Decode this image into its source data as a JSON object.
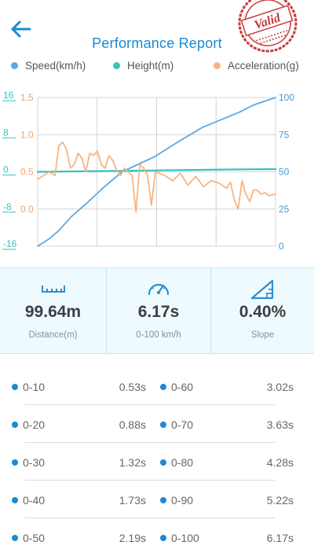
{
  "header": {
    "title": "Performance Report",
    "stamp_text": "Valid",
    "back_icon": "arrow-left-icon"
  },
  "legend": [
    {
      "label": "Speed(km/h)",
      "color": "#5aa9e6"
    },
    {
      "label": "Height(m)",
      "color": "#38c2bf"
    },
    {
      "label": "Acceleration(g)",
      "color": "#f8b480"
    }
  ],
  "chart_data": {
    "type": "line",
    "title": "",
    "xlabel": "",
    "grid": true,
    "axes": {
      "height_ticks": [
        "16",
        "8",
        "0",
        "-8",
        "-16"
      ],
      "height_range": [
        -16,
        16
      ],
      "accel_ticks": [
        "1.5",
        "1.0",
        "0.5",
        "0.0"
      ],
      "accel_range": [
        -0.5,
        1.5
      ],
      "speed_ticks": [
        "100",
        "75",
        "50",
        "25",
        "0"
      ],
      "speed_range": [
        0,
        100
      ],
      "x_range": [
        0,
        6.17
      ]
    },
    "series": [
      {
        "name": "Speed(km/h)",
        "axis": "speed",
        "color": "#5aa9e6",
        "x": [
          0,
          0.3,
          0.53,
          0.88,
          1.32,
          1.73,
          2.19,
          2.6,
          3.02,
          3.63,
          4.28,
          5.22,
          5.6,
          6.17
        ],
        "y": [
          0,
          5,
          10,
          20,
          30,
          40,
          50,
          55,
          60,
          70,
          80,
          90,
          95,
          100
        ]
      },
      {
        "name": "Height(m)",
        "axis": "height",
        "color": "#38c2bf",
        "x": [
          0,
          1.0,
          2.0,
          3.0,
          4.0,
          5.0,
          6.17
        ],
        "y": [
          0,
          0.1,
          0.2,
          0.3,
          0.4,
          0.5,
          0.6
        ]
      },
      {
        "name": "Acceleration(g)",
        "axis": "accel",
        "color": "#f8b480",
        "x": [
          0,
          0.3,
          0.45,
          0.55,
          0.65,
          0.75,
          0.85,
          0.95,
          1.05,
          1.15,
          1.25,
          1.35,
          1.45,
          1.55,
          1.65,
          1.75,
          1.85,
          1.95,
          2.05,
          2.15,
          2.25,
          2.35,
          2.45,
          2.55,
          2.65,
          2.75,
          2.85,
          2.95,
          3.05,
          3.15,
          3.3,
          3.5,
          3.7,
          3.9,
          4.1,
          4.3,
          4.5,
          4.7,
          4.9,
          5.0,
          5.1,
          5.2,
          5.3,
          5.4,
          5.5,
          5.6,
          5.7,
          5.8,
          5.9,
          6.0,
          6.17
        ],
        "y": [
          0.4,
          0.5,
          0.45,
          0.85,
          0.9,
          0.8,
          0.55,
          0.6,
          0.75,
          0.68,
          0.5,
          0.75,
          0.72,
          0.78,
          0.6,
          0.55,
          0.72,
          0.65,
          0.52,
          0.45,
          0.55,
          0.5,
          0.45,
          -0.04,
          0.6,
          0.55,
          0.45,
          0.05,
          0.5,
          0.48,
          0.45,
          0.38,
          0.48,
          0.32,
          0.44,
          0.3,
          0.38,
          0.35,
          0.28,
          0.36,
          0.12,
          0.0,
          0.38,
          0.2,
          0.1,
          0.26,
          0.25,
          0.2,
          0.22,
          0.18,
          0.2
        ]
      }
    ]
  },
  "stats": [
    {
      "value": "99.64m",
      "label": "Distance(m)",
      "icon": "ruler-icon"
    },
    {
      "value": "6.17s",
      "label": "0-100 km/h",
      "icon": "speedometer-icon"
    },
    {
      "value": "0.40%",
      "label": "Slope",
      "icon": "slope-icon"
    }
  ],
  "splits": [
    {
      "left_label": "0-10",
      "left_time": "0.53s",
      "right_label": "0-60",
      "right_time": "3.02s"
    },
    {
      "left_label": "0-20",
      "left_time": "0.88s",
      "right_label": "0-70",
      "right_time": "3.63s"
    },
    {
      "left_label": "0-30",
      "left_time": "1.32s",
      "right_label": "0-80",
      "right_time": "4.28s"
    },
    {
      "left_label": "0-40",
      "left_time": "1.73s",
      "right_label": "0-90",
      "right_time": "5.22s"
    },
    {
      "left_label": "0-50",
      "left_time": "2.19s",
      "right_label": "0-100",
      "right_time": "6.17s"
    }
  ]
}
